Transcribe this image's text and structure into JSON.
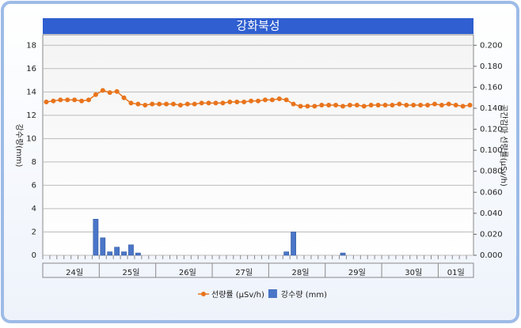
{
  "chart_data": {
    "type": "bar-line",
    "title": "강화북성",
    "y_label": "강수량(mm)",
    "y2_label": "공간감마 선량률(µSv/h)",
    "categories": [
      null,
      null,
      null,
      null,
      "24일",
      null,
      null,
      null,
      null,
      null,
      null,
      null,
      "25일",
      null,
      null,
      null,
      null,
      null,
      null,
      null,
      "26일",
      null,
      null,
      null,
      null,
      null,
      null,
      null,
      "27일",
      null,
      null,
      null,
      null,
      null,
      null,
      null,
      "28일",
      null,
      null,
      null,
      null,
      null,
      null,
      null,
      "29일",
      null,
      null,
      null,
      null,
      null,
      null,
      null,
      "30일",
      null,
      null,
      null,
      null,
      null,
      "01일",
      null,
      null
    ],
    "series": [
      {
        "name": "선량률 (µSv/h)",
        "type": "line",
        "axis": "y2",
        "color": "#e8741c",
        "values": [
          0.146,
          0.147,
          0.148,
          0.148,
          0.148,
          0.147,
          0.148,
          0.153,
          0.157,
          0.155,
          0.156,
          0.15,
          0.145,
          0.144,
          0.143,
          0.144,
          0.144,
          0.144,
          0.144,
          0.143,
          0.144,
          0.144,
          0.145,
          0.145,
          0.145,
          0.145,
          0.146,
          0.146,
          0.146,
          0.147,
          0.147,
          0.148,
          0.148,
          0.149,
          0.148,
          0.144,
          0.142,
          0.142,
          0.142,
          0.143,
          0.143,
          0.143,
          0.142,
          0.143,
          0.143,
          0.142,
          0.143,
          0.143,
          0.143,
          0.143,
          0.144,
          0.143,
          0.143,
          0.143,
          0.143,
          0.144,
          0.143,
          0.144,
          0.143,
          0.142,
          0.143
        ]
      },
      {
        "name": "강수량 (mm)",
        "type": "bar",
        "color": "#4a76c8",
        "values": [
          0,
          0,
          0,
          0,
          0,
          0,
          0,
          3.1,
          1.5,
          0.3,
          0.7,
          0.3,
          0.9,
          0.2,
          0,
          0,
          0,
          0,
          0,
          0,
          0,
          0,
          0,
          0,
          0,
          0,
          0,
          0,
          0,
          0,
          0,
          0,
          0,
          0,
          0.3,
          2.0,
          0,
          0,
          0,
          0,
          0,
          0,
          0.2,
          0,
          0,
          0,
          0,
          0,
          0,
          0,
          0,
          0,
          0,
          0,
          0,
          0,
          0,
          0,
          0,
          0,
          0
        ]
      }
    ],
    "ylim": [
      0,
      18.9
    ],
    "yticks": [
      0,
      2,
      4,
      6,
      8,
      10,
      12,
      14,
      16,
      18
    ],
    "y2lim": [
      0,
      0.21
    ],
    "y2ticks": [
      {
        "value": 0,
        "label": "0.000"
      },
      {
        "value": 0.02,
        "label": "0.020"
      },
      {
        "value": 0.04,
        "label": "0.040"
      },
      {
        "value": 0.06,
        "label": "0.060"
      },
      {
        "value": 0.08,
        "label": "0.080"
      },
      {
        "value": 0.1,
        "label": "0.100"
      },
      {
        "value": 0.12,
        "label": "0.120"
      },
      {
        "value": 0.14,
        "label": "0.140"
      },
      {
        "value": 0.16,
        "label": "0.160"
      },
      {
        "value": 0.18,
        "label": "0.180"
      },
      {
        "value": 0.2,
        "label": "0.200"
      }
    ],
    "grid": true
  }
}
